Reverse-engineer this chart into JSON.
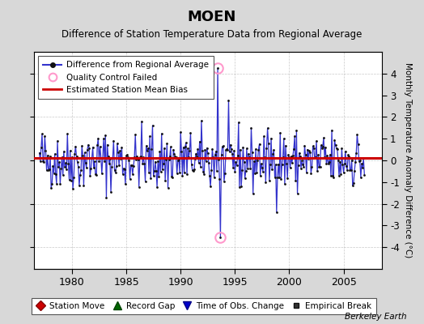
{
  "title": "MOEN",
  "subtitle": "Difference of Station Temperature Data from Regional Average",
  "ylabel_right": "Monthly Temperature Anomaly Difference (°C)",
  "bias_level": 0.1,
  "ylim": [
    -5,
    5
  ],
  "xlim": [
    1976.5,
    2008.5
  ],
  "xticks": [
    1980,
    1985,
    1990,
    1995,
    2000,
    2005
  ],
  "yticks": [
    -4,
    -3,
    -2,
    -1,
    0,
    1,
    2,
    3,
    4
  ],
  "qc_failed_points": [
    [
      1993.42,
      4.25
    ],
    [
      1993.67,
      -3.55
    ]
  ],
  "bias_color": "#cc0000",
  "line_color": "#3333cc",
  "dot_color": "#111111",
  "qc_color": "#ff99cc",
  "bg_color": "#d8d8d8",
  "plot_bg": "#ffffff",
  "grid_color": "#bbbbbb",
  "watermark": "Berkeley Earth",
  "seed": 42,
  "n_points": 360,
  "start_year": 1977.0
}
